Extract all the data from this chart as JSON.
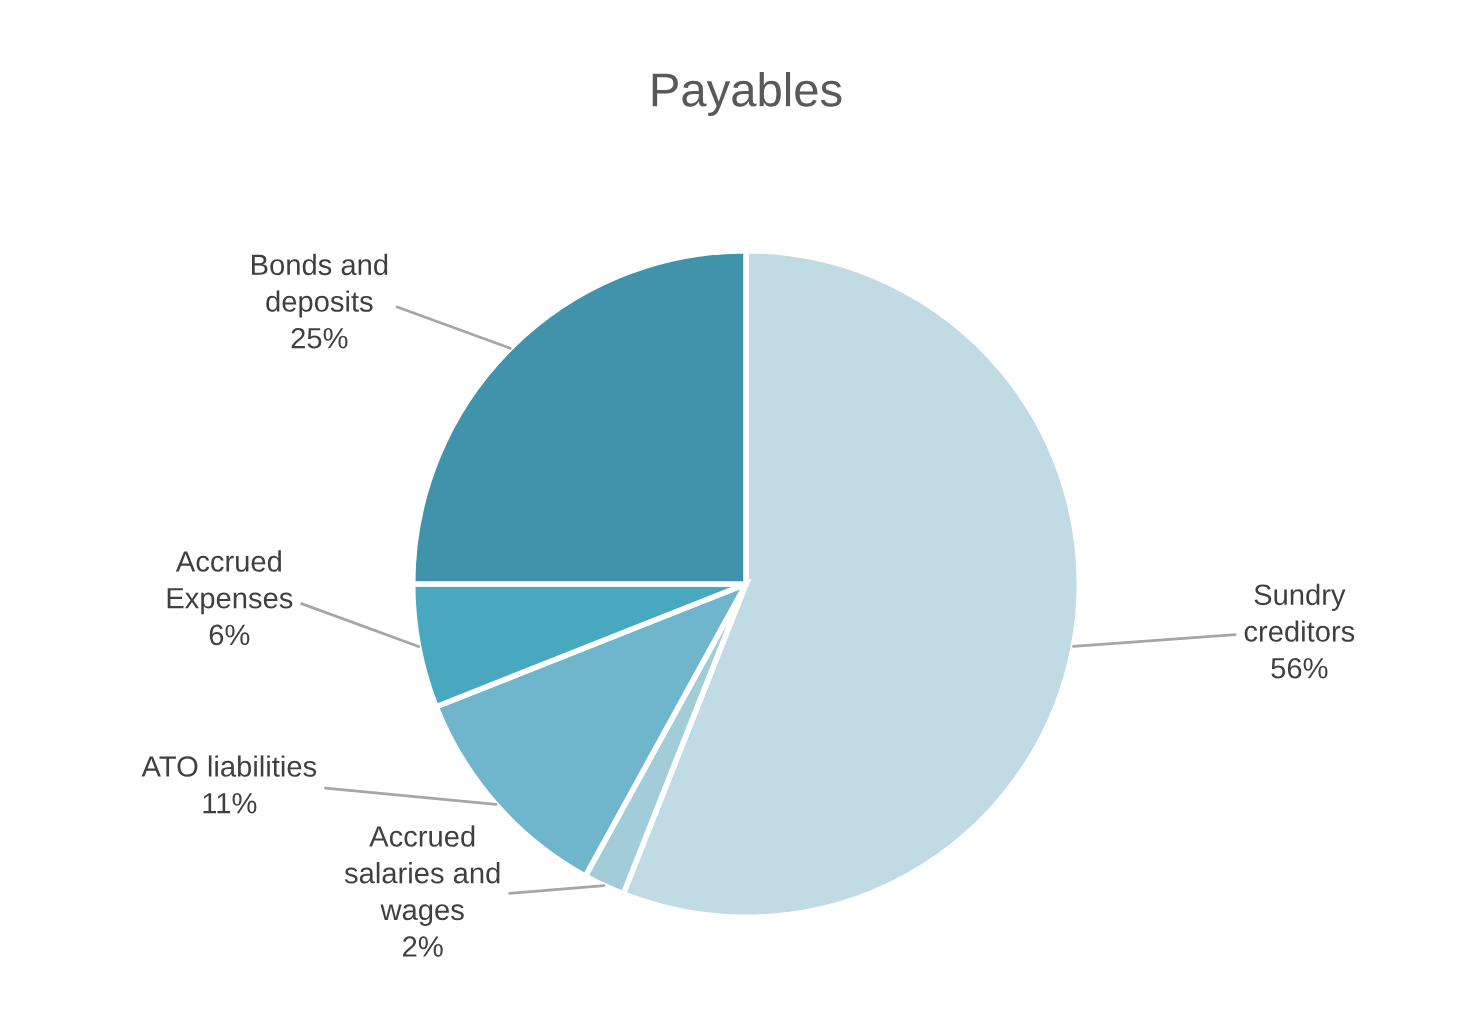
{
  "chart_data": {
    "type": "pie",
    "title": "Payables",
    "categories": [
      "Sundry\ncreditors",
      "Accrued\nsalaries and\nwages",
      "ATO liabilities",
      "Accrued\nExpenses",
      "Bonds and\ndeposits"
    ],
    "values": [
      56,
      2,
      11,
      6,
      25
    ],
    "value_labels": [
      "56%",
      "2%",
      "11%",
      "6%",
      "25%"
    ],
    "colors": [
      "#c0dbe4",
      "#a3ccd9",
      "#6fb6cc",
      "#48a8c0",
      "#4093ab"
    ]
  }
}
